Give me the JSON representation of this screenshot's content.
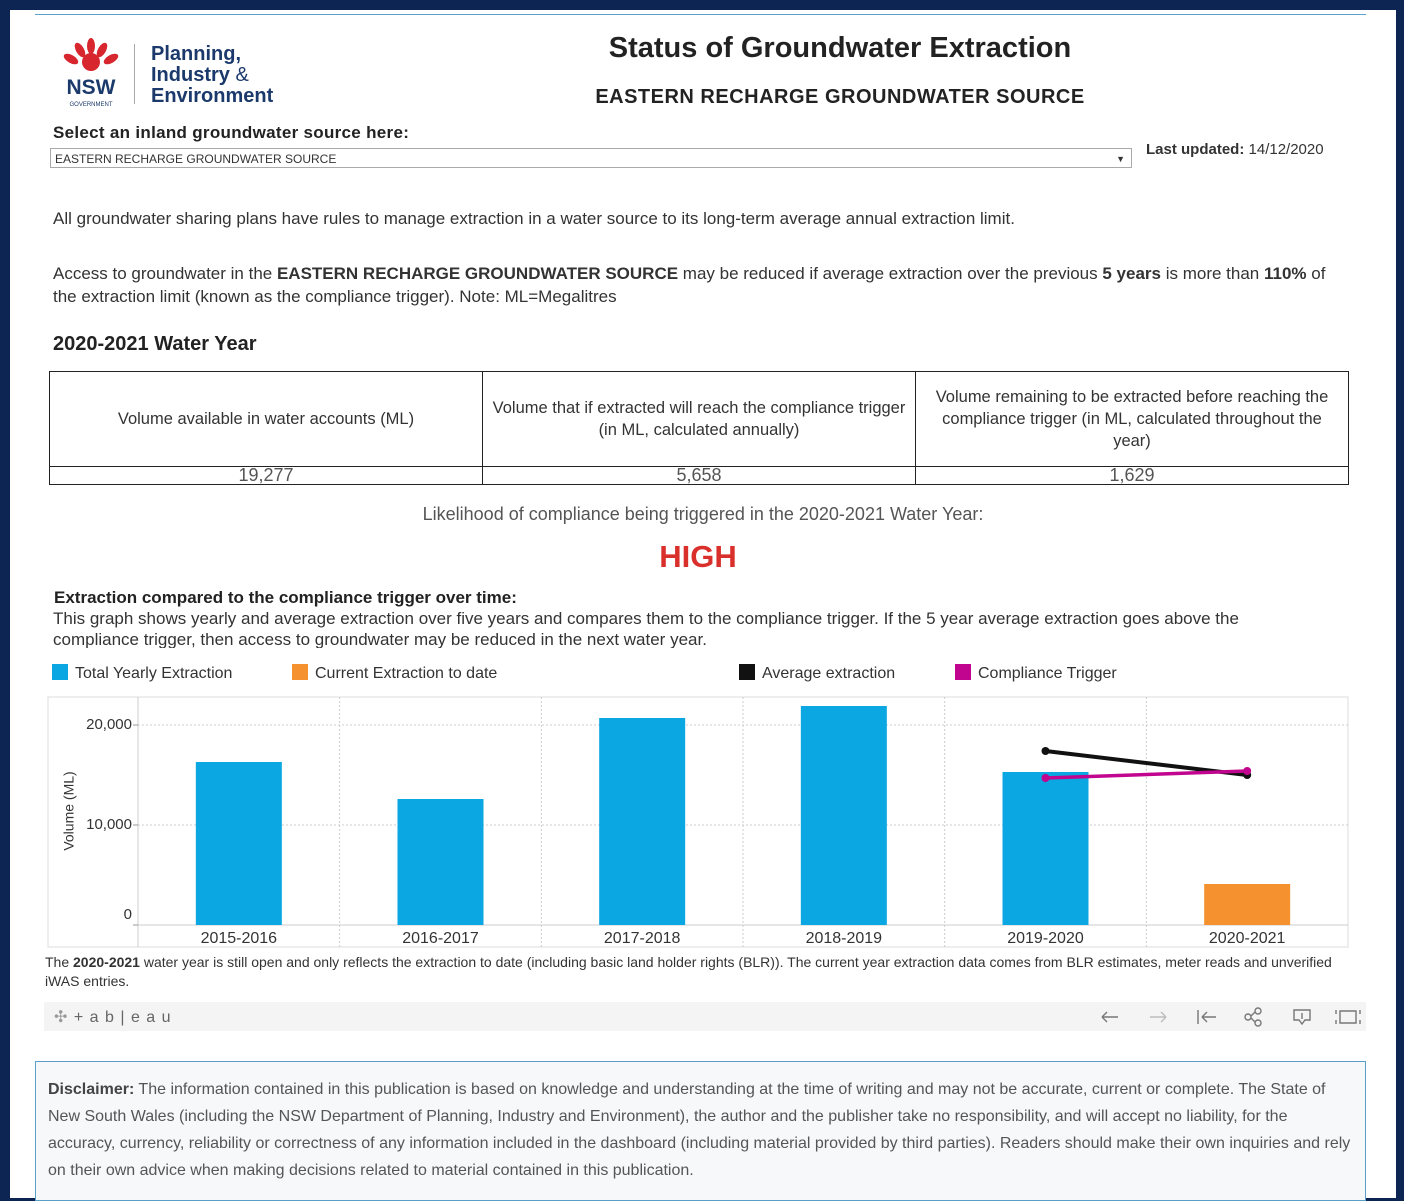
{
  "header": {
    "logo": {
      "mark": "NSW",
      "government": "GOVERNMENT",
      "line1": "Planning,",
      "line2": "Industry",
      "line2b": "&",
      "line3": "Environment"
    },
    "title": "Status of Groundwater Extraction",
    "subtitle": "EASTERN RECHARGE GROUNDWATER SOURCE"
  },
  "selector": {
    "label": "Select an inland groundwater source here:",
    "selected": "EASTERN RECHARGE GROUNDWATER SOURCE",
    "updated_label": "Last updated:",
    "updated_value": "14/12/2020"
  },
  "intro": {
    "rules": "All groundwater sharing plans have rules to manage extraction in a water source to its long-term average annual extraction limit.",
    "access": [
      "Access to groundwater in the ",
      "EASTERN RECHARGE GROUNDWATER SOURCE",
      " may be reduced if average extraction over the previous ",
      "5 years",
      " is more than ",
      "110%",
      " of the extraction limit (known as the compliance trigger). Note: ML=Megalitres"
    ]
  },
  "water_year": {
    "heading": "2020-2021 Water Year",
    "table": {
      "headers": [
        "Volume available in water accounts (ML)",
        "Volume that if extracted will reach the compliance trigger (in ML, calculated annually)",
        "Volume remaining to be extracted before reaching the compliance trigger (in ML, calculated throughout the year)"
      ],
      "rows": [
        [
          "19,277",
          "5,658",
          "1,629"
        ]
      ]
    },
    "likelihood_label": "Likelihood of compliance being triggered in the 2020-2021 Water Year:",
    "likelihood_value": "HIGH"
  },
  "chart_intro": {
    "heading": "Extraction compared to the compliance trigger over time:",
    "description": "This graph shows yearly and average extraction over five years and compares them to the compliance trigger. If the 5 year average extraction goes above the compliance trigger, then access to groundwater may be reduced in the next water year."
  },
  "chart_data": {
    "type": "bar",
    "y_label": "Volume (ML)",
    "categories": [
      "2015-2016",
      "2016-2017",
      "2017-2018",
      "2018-2019",
      "2019-2020",
      "2020-2021"
    ],
    "series": [
      {
        "name": "Total Yearly Extraction",
        "type": "bar",
        "color": "#0aa7e2",
        "values": [
          16300,
          12600,
          20700,
          21900,
          15300,
          null
        ]
      },
      {
        "name": "Current Extraction to date",
        "type": "bar",
        "color": "#f5922f",
        "values": [
          null,
          null,
          null,
          null,
          null,
          4100
        ]
      },
      {
        "name": "Average extraction",
        "type": "line",
        "color": "#111111",
        "values": [
          null,
          null,
          null,
          null,
          17400,
          15000
        ]
      },
      {
        "name": "Compliance Trigger",
        "type": "line",
        "color": "#c2058f",
        "values": [
          null,
          null,
          null,
          null,
          14700,
          15400
        ]
      }
    ],
    "ylim": [
      0,
      22800
    ],
    "yticks": [
      0,
      {
        "value": 10000,
        "label": "10,000"
      },
      {
        "value": 20000,
        "label": "20,000"
      }
    ],
    "grid": true
  },
  "footnote": [
    "The ",
    "2020-2021",
    " water year is still open and only reflects the extraction to date (including basic land holder rights (BLR)). The current year extraction data comes from BLR estimates, meter reads and unverified iWAS entries."
  ],
  "toolbar": {
    "brand": "+ a b | e a u"
  },
  "disclaimer": {
    "label": "Disclaimer:",
    "text": " The information contained in this publication is based on knowledge and understanding at the time of writing and may not be accurate, current or complete. The State of New South Wales (including the NSW Department of Planning, Industry and Environment), the author and the publisher take no responsibility, and will accept no liability, for the accuracy, currency, reliability or correctness of any information included in the dashboard (including material provided by third parties). Readers should make their own inquiries and rely on their own advice when making decisions related to material contained in this publication."
  }
}
